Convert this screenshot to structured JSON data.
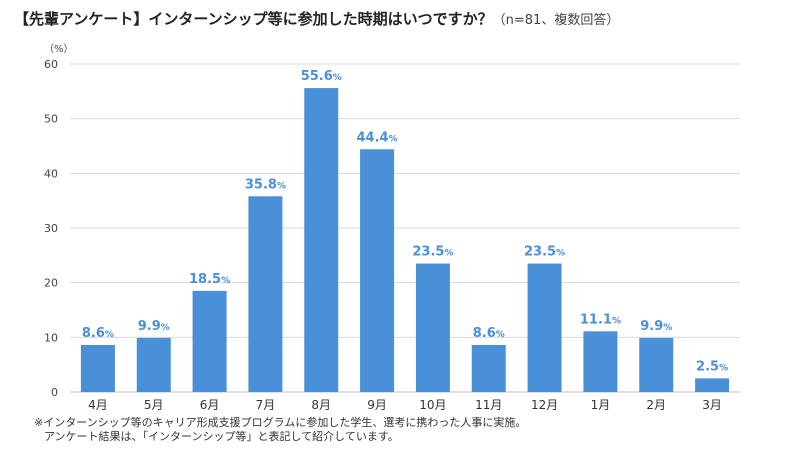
{
  "header": {
    "title": "【先輩アンケート】インターンシップ等に参加した時期はいつですか？",
    "subtitle": "（n=81、複数回答）"
  },
  "unit_label": "（%）",
  "notes": [
    "※インターンシップ等のキャリア形成支援プログラムに参加した学生、選考に携わった人事に実施。",
    "アンケート結果は、「インターンシップ等」と表記して紹介しています。"
  ],
  "colors": {
    "bar": "#4a90d9",
    "label": "#4a90d9",
    "grid": "#d9d9d9",
    "axis": "#bfbfbf"
  },
  "chart_data": {
    "type": "bar",
    "title": "【先輩アンケート】インターンシップ等に参加した時期はいつですか？（n=81、複数回答）",
    "categories": [
      "4月",
      "5月",
      "6月",
      "7月",
      "8月",
      "9月",
      "10月",
      "11月",
      "12月",
      "1月",
      "2月",
      "3月"
    ],
    "values": [
      8.6,
      9.9,
      18.5,
      35.8,
      55.6,
      44.4,
      23.5,
      8.6,
      23.5,
      11.1,
      9.9,
      2.5
    ],
    "value_labels": [
      "8.6",
      "9.9",
      "18.5",
      "35.8",
      "55.6",
      "44.4",
      "23.5",
      "8.6",
      "23.5",
      "11.1",
      "9.9",
      "2.5"
    ],
    "value_suffix": "%",
    "yticks": [
      "0",
      "10",
      "20",
      "30",
      "40",
      "50",
      "60"
    ],
    "ylim": [
      0,
      60
    ],
    "ylabel": "（%）",
    "xlabel": "",
    "grid": true
  }
}
